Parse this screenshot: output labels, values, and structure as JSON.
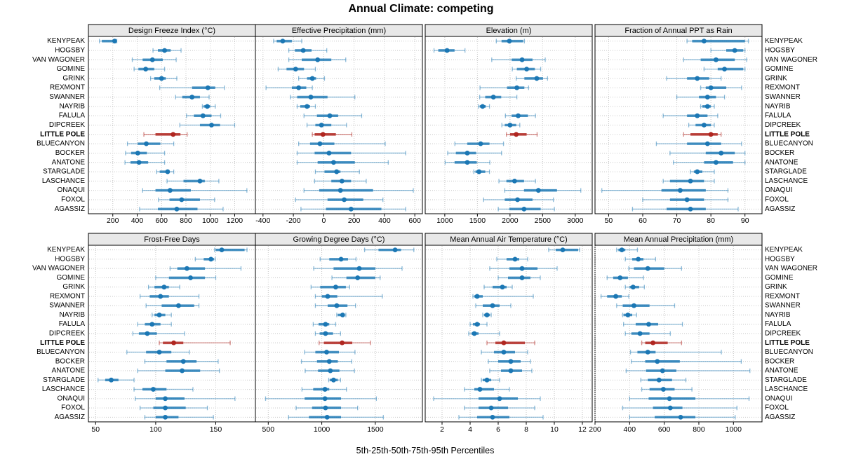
{
  "colors": {
    "blue": "#1b77b4",
    "blue_band": "rgba(27,119,180,0.78)",
    "blue_whisker": "rgba(27,119,180,0.50)",
    "red": "#b02620",
    "red_band": "rgba(176,38,32,0.82)",
    "red_whisker": "rgba(176,38,32,0.55)",
    "strip_bg": "#e8e8e8",
    "grid": "#c6c6c6",
    "border": "#000000"
  },
  "chart_data": {
    "type": "scatter",
    "variant": "multi-panel percentile dotplot (whisker = 5th-95th, band = 25th-75th, dot = median)",
    "title": "Annual Climate: competing",
    "footer_label": "5th-25th-50th-75th-95th Percentiles",
    "grid": "dotted",
    "legend_position": "none",
    "highlight_station": "LITTLE POLE",
    "stations": [
      "KENYPEAK",
      "HOGSBY",
      "VAN WAGONER",
      "GOMINE",
      "GRINK",
      "REXMONT",
      "SWANNER",
      "NAYRIB",
      "FALULA",
      "DIPCREEK",
      "LITTLE POLE",
      "BLUECANYON",
      "BOCKER",
      "ANATONE",
      "STARGLADE",
      "LASCHANCE",
      "ONAQUI",
      "FOXOL",
      "AGASSIZ"
    ],
    "panels": [
      {
        "title": "Design Freeze Index (°C)",
        "ticks": [
          200,
          400,
          600,
          800,
          1000,
          1200
        ],
        "xlim": [
          0,
          1370
        ],
        "values": [
          [
            90,
            110,
            215,
            225,
            233
          ],
          [
            530,
            570,
            625,
            675,
            760
          ],
          [
            360,
            445,
            525,
            610,
            720
          ],
          [
            375,
            410,
            470,
            540,
            625
          ],
          [
            510,
            540,
            600,
            635,
            725
          ],
          [
            585,
            850,
            980,
            1040,
            1115
          ],
          [
            715,
            770,
            850,
            915,
            990
          ],
          [
            935,
            945,
            975,
            1000,
            1040
          ],
          [
            805,
            865,
            940,
            1010,
            1085
          ],
          [
            750,
            915,
            1010,
            1080,
            1200
          ],
          [
            455,
            550,
            695,
            755,
            810
          ],
          [
            320,
            405,
            475,
            590,
            700
          ],
          [
            305,
            350,
            405,
            480,
            625
          ],
          [
            300,
            345,
            415,
            490,
            625
          ],
          [
            560,
            585,
            650,
            665,
            700
          ],
          [
            645,
            780,
            915,
            955,
            1070
          ],
          [
            445,
            550,
            670,
            840,
            1300
          ],
          [
            575,
            665,
            765,
            915,
            1035
          ],
          [
            420,
            570,
            725,
            895,
            1105
          ]
        ]
      },
      {
        "title": "Effective Precipitation (mm)",
        "ticks": [
          -400,
          -200,
          0,
          200,
          400,
          600
        ],
        "xlim": [
          -450,
          650
        ],
        "values": [
          [
            -330,
            -310,
            -270,
            -210,
            -145
          ],
          [
            -230,
            -190,
            -135,
            -80,
            20
          ],
          [
            -230,
            -145,
            -40,
            50,
            145
          ],
          [
            -300,
            -245,
            -185,
            -130,
            -55
          ],
          [
            -165,
            -110,
            -75,
            -50,
            5
          ],
          [
            -380,
            -210,
            -165,
            -115,
            -75
          ],
          [
            -220,
            -175,
            -85,
            25,
            205
          ],
          [
            -175,
            -155,
            -110,
            -90,
            -55
          ],
          [
            -130,
            -45,
            40,
            95,
            250
          ],
          [
            -110,
            -55,
            -15,
            50,
            150
          ],
          [
            -75,
            -60,
            -5,
            80,
            185
          ],
          [
            -165,
            -90,
            -25,
            70,
            405
          ],
          [
            -175,
            -60,
            35,
            180,
            540
          ],
          [
            -175,
            -40,
            65,
            205,
            425
          ],
          [
            -55,
            5,
            85,
            110,
            235
          ],
          [
            -60,
            50,
            120,
            180,
            280
          ],
          [
            -130,
            -30,
            110,
            325,
            590
          ],
          [
            -185,
            25,
            135,
            260,
            390
          ],
          [
            -150,
            15,
            180,
            380,
            540
          ]
        ]
      },
      {
        "title": "Elevation (m)",
        "ticks": [
          1000,
          1500,
          2000,
          2500,
          3000
        ],
        "xlim": [
          700,
          3260
        ],
        "values": [
          [
            1790,
            1870,
            1990,
            2200,
            2220
          ],
          [
            835,
            900,
            1035,
            1150,
            1310
          ],
          [
            1720,
            2025,
            2185,
            2345,
            2540
          ],
          [
            2035,
            2105,
            2255,
            2380,
            2470
          ],
          [
            2095,
            2220,
            2410,
            2505,
            2575
          ],
          [
            1540,
            1955,
            2105,
            2220,
            2285
          ],
          [
            1535,
            1620,
            1745,
            1865,
            2105
          ],
          [
            1515,
            1535,
            1580,
            1630,
            1685
          ],
          [
            1930,
            2025,
            2125,
            2275,
            2390
          ],
          [
            1875,
            1920,
            2000,
            2095,
            2150
          ],
          [
            1945,
            2000,
            2095,
            2255,
            2415
          ],
          [
            1155,
            1345,
            1550,
            1685,
            1900
          ],
          [
            1045,
            1170,
            1345,
            1480,
            1870
          ],
          [
            1005,
            1150,
            1345,
            1490,
            1690
          ],
          [
            1445,
            1470,
            1525,
            1620,
            1685
          ],
          [
            1830,
            1945,
            2070,
            2215,
            2390
          ],
          [
            1920,
            2215,
            2435,
            2720,
            3085
          ],
          [
            1595,
            1920,
            2115,
            2345,
            2665
          ],
          [
            1820,
            1990,
            2215,
            2470,
            2680
          ]
        ]
      },
      {
        "title": "Fraction of Annual PPT as Rain",
        "ticks": [
          50,
          60,
          70,
          80,
          90
        ],
        "xlim": [
          46,
          95
        ],
        "values": [
          [
            73,
            74.5,
            78,
            90,
            91
          ],
          [
            80,
            84.5,
            87,
            89.5,
            90
          ],
          [
            72,
            77,
            81.5,
            87,
            90.5
          ],
          [
            78,
            82,
            84,
            89.5,
            90
          ],
          [
            67,
            73,
            76,
            79.5,
            83
          ],
          [
            77,
            78.5,
            80,
            84.5,
            89
          ],
          [
            70,
            76.5,
            79,
            81.5,
            84
          ],
          [
            77,
            77.5,
            79,
            80,
            81
          ],
          [
            66,
            73,
            76,
            79,
            82
          ],
          [
            73.5,
            75.5,
            78,
            80,
            81
          ],
          [
            72,
            74,
            80,
            82,
            83
          ],
          [
            64,
            73,
            79,
            83,
            89
          ],
          [
            68,
            78.5,
            83,
            87,
            90
          ],
          [
            69,
            78,
            81.5,
            86.5,
            90
          ],
          [
            74,
            75,
            76,
            77.5,
            81
          ],
          [
            66,
            68,
            74,
            78,
            81
          ],
          [
            48,
            65.5,
            71,
            78.5,
            85
          ],
          [
            60,
            68,
            73,
            78,
            85
          ],
          [
            57,
            67,
            74,
            78.5,
            88
          ]
        ]
      },
      {
        "title": "Frost-Free Days",
        "ticks": [
          50,
          100,
          150
        ],
        "xlim": [
          44,
          183
        ],
        "values": [
          [
            149,
            150,
            155,
            174,
            176
          ],
          [
            133,
            140,
            146,
            148.5,
            149.5
          ],
          [
            112,
            118,
            126,
            141,
            171
          ],
          [
            100,
            111,
            129,
            141,
            150
          ],
          [
            94,
            99,
            107,
            111,
            120
          ],
          [
            87,
            95,
            104,
            111,
            136
          ],
          [
            92,
            105,
            119,
            132,
            136
          ],
          [
            97,
            99,
            103,
            108,
            113
          ],
          [
            85,
            91,
            97,
            104,
            113
          ],
          [
            81,
            86,
            93,
            101,
            124
          ],
          [
            103,
            106,
            115,
            123,
            162
          ],
          [
            76,
            92,
            103,
            113,
            128
          ],
          [
            91,
            109,
            123,
            134,
            152
          ],
          [
            85,
            108,
            122,
            137,
            153
          ],
          [
            52,
            58,
            63,
            69,
            82
          ],
          [
            82,
            89,
            98,
            109,
            131
          ],
          [
            83,
            100,
            108,
            124,
            166
          ],
          [
            87,
            98,
            108,
            125,
            143
          ],
          [
            91,
            100,
            108,
            119,
            148
          ]
        ]
      },
      {
        "title": "Growing Degree Days (°C)",
        "ticks": [
          500,
          1000,
          1500
        ],
        "xlim": [
          380,
          1940
        ],
        "values": [
          [
            1400,
            1530,
            1685,
            1740,
            1860
          ],
          [
            985,
            1070,
            1180,
            1245,
            1320
          ],
          [
            925,
            1110,
            1350,
            1500,
            1750
          ],
          [
            1095,
            1230,
            1335,
            1500,
            1545
          ],
          [
            900,
            985,
            1130,
            1225,
            1260
          ],
          [
            940,
            1000,
            1055,
            1145,
            1565
          ],
          [
            940,
            1055,
            1140,
            1240,
            1315
          ],
          [
            1140,
            1150,
            1195,
            1210,
            1225
          ],
          [
            920,
            970,
            1035,
            1070,
            1130
          ],
          [
            940,
            980,
            1035,
            1105,
            1175
          ],
          [
            975,
            1020,
            1190,
            1285,
            1455
          ],
          [
            840,
            940,
            1045,
            1160,
            1310
          ],
          [
            810,
            955,
            1070,
            1150,
            1280
          ],
          [
            845,
            965,
            1080,
            1165,
            1305
          ],
          [
            1065,
            1075,
            1110,
            1150,
            1175
          ],
          [
            815,
            920,
            1030,
            1070,
            1230
          ],
          [
            475,
            840,
            1030,
            1180,
            1510
          ],
          [
            760,
            910,
            1035,
            1180,
            1335
          ],
          [
            690,
            880,
            1050,
            1180,
            1575
          ]
        ]
      },
      {
        "title": "Mean Annual Air Temperature (°C)",
        "ticks": [
          2,
          4,
          6,
          8,
          10,
          12
        ],
        "xlim": [
          0.8,
          12.7
        ],
        "values": [
          [
            9.6,
            10.1,
            10.6,
            11.7,
            11.8
          ],
          [
            5.9,
            6.6,
            7.2,
            7.5,
            8.1
          ],
          [
            5.4,
            6.8,
            7.7,
            8.8,
            10.2
          ],
          [
            6.0,
            6.7,
            7.7,
            8.3,
            9.0
          ],
          [
            5.0,
            5.6,
            6.3,
            6.6,
            7.0
          ],
          [
            4.2,
            4.3,
            4.5,
            4.9,
            8.5
          ],
          [
            4.4,
            4.9,
            5.6,
            6.1,
            6.9
          ],
          [
            4.9,
            5.0,
            5.2,
            5.4,
            5.5
          ],
          [
            4.0,
            4.2,
            4.5,
            4.7,
            5.2
          ],
          [
            3.9,
            4.1,
            4.3,
            4.6,
            6.1
          ],
          [
            5.2,
            5.8,
            6.4,
            7.9,
            8.6
          ],
          [
            4.8,
            5.7,
            6.4,
            7.2,
            8.1
          ],
          [
            5.3,
            6.0,
            6.9,
            7.6,
            8.3
          ],
          [
            5.4,
            6.2,
            6.9,
            7.7,
            8.4
          ],
          [
            4.8,
            4.9,
            5.2,
            5.5,
            6.1
          ],
          [
            3.6,
            4.3,
            4.7,
            5.7,
            6.8
          ],
          [
            1.4,
            4.6,
            6.1,
            7.4,
            9.0
          ],
          [
            3.6,
            4.6,
            5.5,
            6.7,
            8.6
          ],
          [
            3.2,
            4.5,
            5.6,
            6.8,
            9.2
          ]
        ]
      },
      {
        "title": "Mean Annual Precipitation (mm)",
        "ticks": [
          200,
          400,
          600,
          800,
          1000
        ],
        "xlim": [
          200,
          1165
        ],
        "values": [
          [
            325,
            335,
            355,
            375,
            445
          ],
          [
            375,
            415,
            450,
            480,
            550
          ],
          [
            395,
            425,
            505,
            600,
            700
          ],
          [
            270,
            305,
            345,
            390,
            480
          ],
          [
            375,
            400,
            420,
            455,
            485
          ],
          [
            235,
            270,
            320,
            355,
            395
          ],
          [
            325,
            360,
            425,
            515,
            660
          ],
          [
            360,
            365,
            390,
            415,
            440
          ],
          [
            365,
            435,
            510,
            565,
            705
          ],
          [
            375,
            410,
            460,
            515,
            635
          ],
          [
            470,
            490,
            535,
            620,
            700
          ],
          [
            405,
            445,
            505,
            550,
            930
          ],
          [
            410,
            490,
            560,
            690,
            1045
          ],
          [
            380,
            495,
            590,
            670,
            1095
          ],
          [
            465,
            505,
            570,
            645,
            725
          ],
          [
            470,
            515,
            595,
            660,
            760
          ],
          [
            400,
            510,
            630,
            780,
            1090
          ],
          [
            360,
            535,
            635,
            705,
            1020
          ],
          [
            400,
            545,
            695,
            780,
            1010
          ]
        ]
      }
    ]
  }
}
